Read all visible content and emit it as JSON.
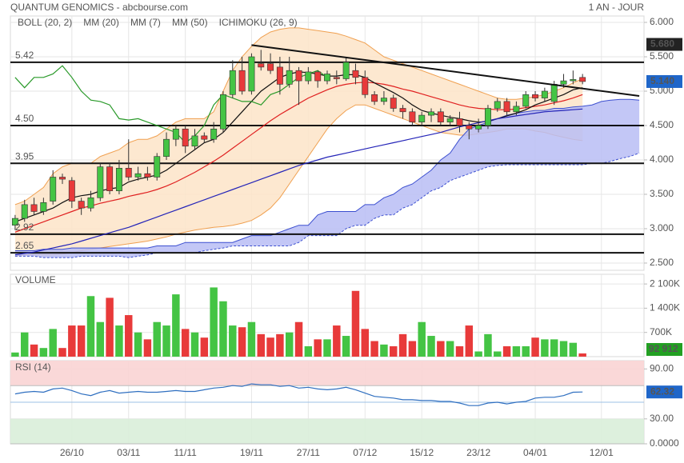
{
  "chart_data": [
    {
      "type": "candlestick",
      "title": "QUANTUM GENOMICS - abcbourse.com",
      "subtitle": "1 AN - JOUR",
      "categories": [
        null,
        null,
        null,
        null,
        null,
        null,
        "26/10",
        null,
        null,
        null,
        null,
        null,
        "03/11",
        null,
        null,
        null,
        null,
        null,
        "11/11",
        null,
        null,
        null,
        null,
        null,
        null,
        "19/11",
        null,
        null,
        null,
        null,
        null,
        "27/11",
        null,
        null,
        null,
        null,
        null,
        "07/12",
        null,
        null,
        null,
        null,
        null,
        "15/12",
        null,
        null,
        null,
        null,
        null,
        "23/12",
        null,
        null,
        null,
        null,
        null,
        "04/01",
        null,
        null,
        null,
        null,
        null,
        null,
        "12/01",
        null,
        null,
        null,
        null
      ],
      "open": [
        3.05,
        3.15,
        3.35,
        3.25,
        3.4,
        3.75,
        3.7,
        3.4,
        3.3,
        3.45,
        3.9,
        3.55,
        3.88,
        3.75,
        3.8,
        3.75,
        4.05,
        4.3,
        4.45,
        4.2,
        4.35,
        4.3,
        4.45,
        4.95,
        5.3,
        5.0,
        5.4,
        5.4,
        5.35,
        5.1,
        5.3,
        5.15,
        5.28,
        5.15,
        5.2,
        5.18,
        5.3,
        5.2,
        4.95,
        4.85,
        4.9,
        4.75,
        4.7,
        4.55,
        4.65,
        4.7,
        4.55,
        4.6,
        4.5,
        4.45,
        4.5,
        4.75,
        4.85,
        4.7,
        4.78,
        4.95,
        4.9,
        4.85,
        5.1,
        5.15,
        5.2,
        null,
        null,
        null,
        null,
        null,
        null
      ],
      "high": [
        3.2,
        3.42,
        3.45,
        3.45,
        3.85,
        3.8,
        3.75,
        3.45,
        3.55,
        3.95,
        3.95,
        4.0,
        4.3,
        3.9,
        3.9,
        4.1,
        4.4,
        4.5,
        4.5,
        4.45,
        4.4,
        4.55,
        5.0,
        5.45,
        5.5,
        5.55,
        5.6,
        5.55,
        5.5,
        5.5,
        5.35,
        5.35,
        5.3,
        5.3,
        5.3,
        5.5,
        5.4,
        5.3,
        5.0,
        5.0,
        4.95,
        4.8,
        4.75,
        4.7,
        4.75,
        4.75,
        4.65,
        4.7,
        4.55,
        4.6,
        4.8,
        4.9,
        4.9,
        4.85,
        5.0,
        5.0,
        5.05,
        5.15,
        5.25,
        5.3,
        5.25,
        null,
        null,
        null,
        null,
        null,
        null
      ],
      "low": [
        2.98,
        3.1,
        3.2,
        3.2,
        3.35,
        3.65,
        3.3,
        3.2,
        3.25,
        3.4,
        3.5,
        3.5,
        3.7,
        3.7,
        3.7,
        3.7,
        4.0,
        4.2,
        4.1,
        4.15,
        4.25,
        4.25,
        4.4,
        4.9,
        4.95,
        4.95,
        5.3,
        5.25,
        4.95,
        5.05,
        4.8,
        5.1,
        5.05,
        5.1,
        5.1,
        5.15,
        5.1,
        4.9,
        4.8,
        4.8,
        4.7,
        4.6,
        4.5,
        4.5,
        4.55,
        4.5,
        4.5,
        4.4,
        4.3,
        4.4,
        4.45,
        4.7,
        4.65,
        4.65,
        4.75,
        4.85,
        4.85,
        4.8,
        5.05,
        5.1,
        5.1,
        null,
        null,
        null,
        null,
        null,
        null
      ],
      "close": [
        3.15,
        3.35,
        3.25,
        3.38,
        3.75,
        3.72,
        3.4,
        3.3,
        3.45,
        3.9,
        3.55,
        3.88,
        3.75,
        3.8,
        3.75,
        4.05,
        4.3,
        4.45,
        4.2,
        4.35,
        4.3,
        4.45,
        4.95,
        5.3,
        5.0,
        5.5,
        5.35,
        5.3,
        5.1,
        5.3,
        5.15,
        5.28,
        5.15,
        5.25,
        5.18,
        5.42,
        5.2,
        4.95,
        4.85,
        4.9,
        4.75,
        4.7,
        4.55,
        4.65,
        4.7,
        4.55,
        4.6,
        4.5,
        4.45,
        4.5,
        4.75,
        4.85,
        4.7,
        4.78,
        4.95,
        4.9,
        5.0,
        5.1,
        5.15,
        5.17,
        5.14,
        null,
        null,
        null,
        null,
        null,
        null
      ],
      "up_color": "#44c444",
      "down_color": "#e83a3a",
      "series": [
        {
          "name": "BOLL (20, 2)",
          "color": "#f0a050",
          "fill": "#fde4c8",
          "upper": [
            3.35,
            3.4,
            3.5,
            3.6,
            3.8,
            3.9,
            3.95,
            3.95,
            3.95,
            4.05,
            4.1,
            4.15,
            4.25,
            4.3,
            4.3,
            4.35,
            4.45,
            4.55,
            4.6,
            4.6,
            4.6,
            4.7,
            5.0,
            5.3,
            5.5,
            5.65,
            5.78,
            5.86,
            5.9,
            5.92,
            5.92,
            5.9,
            5.88,
            5.86,
            5.84,
            5.8,
            5.75,
            5.7,
            5.6,
            5.5,
            5.45,
            5.4,
            5.35,
            5.3,
            5.25,
            5.2,
            5.15,
            5.1,
            5.05,
            5.0,
            4.95,
            4.9,
            4.88,
            4.88,
            4.9,
            4.92,
            4.95,
            5.0,
            5.05,
            5.12,
            5.18,
            null,
            null,
            null,
            null,
            null,
            null
          ],
          "lower": [
            2.6,
            2.62,
            2.62,
            2.62,
            2.62,
            2.63,
            2.65,
            2.68,
            2.7,
            2.72,
            2.74,
            2.76,
            2.78,
            2.8,
            2.82,
            2.85,
            2.88,
            2.92,
            2.95,
            2.98,
            3.0,
            3.02,
            3.03,
            3.05,
            3.08,
            3.12,
            3.2,
            3.3,
            3.45,
            3.65,
            3.85,
            4.05,
            4.25,
            4.45,
            4.6,
            4.72,
            4.8,
            4.8,
            4.75,
            4.7,
            4.65,
            4.6,
            4.55,
            4.5,
            4.45,
            4.4,
            4.38,
            4.36,
            4.36,
            4.38,
            4.4,
            4.42,
            4.45,
            4.45,
            4.45,
            4.42,
            4.4,
            4.36,
            4.33,
            4.3,
            4.28,
            null,
            null,
            null,
            null,
            null,
            null
          ]
        },
        {
          "name": "MM (20)",
          "color": "#e02020",
          "values": [
            2.95,
            3.0,
            3.05,
            3.1,
            3.15,
            3.2,
            3.25,
            3.3,
            3.33,
            3.37,
            3.4,
            3.43,
            3.47,
            3.5,
            3.53,
            3.57,
            3.62,
            3.68,
            3.75,
            3.82,
            3.9,
            3.98,
            4.07,
            4.17,
            4.27,
            4.37,
            4.47,
            4.57,
            4.66,
            4.74,
            4.82,
            4.9,
            4.96,
            5.02,
            5.07,
            5.1,
            5.12,
            5.13,
            5.12,
            5.1,
            5.07,
            5.03,
            5.0,
            4.96,
            4.92,
            4.88,
            4.84,
            4.8,
            4.77,
            4.75,
            4.74,
            4.73,
            4.73,
            4.74,
            4.76,
            4.78,
            4.8,
            4.83,
            4.86,
            4.9,
            4.95,
            null,
            null,
            null,
            null,
            null,
            null
          ]
        },
        {
          "name": "MM (7)",
          "color": "#111111",
          "values": [
            3.1,
            3.15,
            3.2,
            3.25,
            3.3,
            3.38,
            3.45,
            3.48,
            3.5,
            3.55,
            3.58,
            3.6,
            3.68,
            3.72,
            3.75,
            3.78,
            3.85,
            3.95,
            4.05,
            4.15,
            4.25,
            4.3,
            4.4,
            4.55,
            4.7,
            4.85,
            5.0,
            5.1,
            5.2,
            5.25,
            5.28,
            5.27,
            5.25,
            5.22,
            5.22,
            5.24,
            5.24,
            5.2,
            5.12,
            5.05,
            4.98,
            4.9,
            4.8,
            4.72,
            4.68,
            4.65,
            4.62,
            4.6,
            4.57,
            4.55,
            4.56,
            4.6,
            4.64,
            4.68,
            4.73,
            4.8,
            4.85,
            4.9,
            4.95,
            5.02,
            5.05,
            null,
            null,
            null,
            null,
            null,
            null
          ]
        },
        {
          "name": "MM (50)",
          "color": "#2424b8",
          "values": [
            2.62,
            2.64,
            2.66,
            2.69,
            2.72,
            2.75,
            2.78,
            2.82,
            2.86,
            2.9,
            2.94,
            2.98,
            3.02,
            3.07,
            3.12,
            3.17,
            3.22,
            3.27,
            3.32,
            3.37,
            3.42,
            3.47,
            3.52,
            3.57,
            3.62,
            3.67,
            3.72,
            3.77,
            3.82,
            3.87,
            3.92,
            3.96,
            4.0,
            4.04,
            4.07,
            4.1,
            4.13,
            4.16,
            4.19,
            4.22,
            4.25,
            4.28,
            4.31,
            4.34,
            4.37,
            4.4,
            4.44,
            4.48,
            4.51,
            4.54,
            4.57,
            4.6,
            4.62,
            4.64,
            4.66,
            4.68,
            4.7,
            4.71,
            4.72,
            4.73,
            4.74,
            null,
            null,
            null,
            null,
            null,
            null
          ]
        },
        {
          "name": "ICHIMOKU (26, 9)",
          "color": "#3c4fd0",
          "fill": "#b9bdf4",
          "lagging_color": "#2a9a2a",
          "span_a": [
            2.68,
            2.68,
            2.68,
            2.7,
            2.7,
            2.7,
            2.72,
            2.72,
            2.72,
            2.72,
            2.72,
            2.72,
            2.72,
            2.72,
            2.72,
            2.75,
            2.75,
            2.75,
            2.8,
            2.8,
            2.8,
            2.8,
            2.8,
            2.8,
            2.85,
            2.9,
            2.9,
            2.9,
            2.95,
            3.0,
            3.05,
            3.05,
            3.2,
            3.25,
            3.25,
            3.25,
            3.25,
            3.35,
            3.35,
            3.45,
            3.5,
            3.6,
            3.65,
            3.75,
            3.85,
            4.0,
            4.1,
            4.3,
            4.45,
            4.5,
            4.55,
            4.6,
            4.65,
            4.68,
            4.7,
            4.72,
            4.72,
            4.75,
            4.75,
            4.77,
            4.78,
            4.8,
            4.85,
            4.87,
            4.88,
            4.88,
            4.87
          ],
          "span_b": [
            2.6,
            2.6,
            2.6,
            2.58,
            2.58,
            2.58,
            2.58,
            2.6,
            2.6,
            2.6,
            2.6,
            2.6,
            2.58,
            2.6,
            2.62,
            2.65,
            2.65,
            2.65,
            2.65,
            2.65,
            2.68,
            2.7,
            2.72,
            2.75,
            2.75,
            2.75,
            2.75,
            2.75,
            2.75,
            2.75,
            2.8,
            2.9,
            2.9,
            2.9,
            2.9,
            3.0,
            3.05,
            3.05,
            3.15,
            3.2,
            3.2,
            3.3,
            3.35,
            3.45,
            3.55,
            3.6,
            3.7,
            3.75,
            3.8,
            3.85,
            3.9,
            3.92,
            3.93,
            3.93,
            3.93,
            3.93,
            3.93,
            3.93,
            3.93,
            3.93,
            3.93,
            3.95,
            3.95,
            3.98,
            4.02,
            4.05,
            4.1
          ],
          "lagging": [
            5.2,
            5.05,
            5.2,
            5.2,
            5.25,
            5.37,
            5.2,
            5.0,
            4.87,
            4.85,
            4.8,
            4.6,
            4.58,
            4.6,
            4.55,
            4.5,
            4.45,
            4.4,
            4.25,
            4.35,
            4.5,
            4.8,
            4.95,
            4.9,
            4.85,
            4.85,
            4.8,
            4.95,
            5.0,
            5.1,
            5.2,
            5.25,
            5.3,
            5.2,
            null,
            null,
            null,
            null,
            null,
            null,
            null,
            null,
            null,
            null,
            null,
            null,
            null,
            null,
            null,
            null,
            null,
            null,
            null,
            null,
            null,
            null,
            null,
            null,
            null,
            null,
            null,
            null,
            null,
            null,
            null,
            null,
            null
          ]
        }
      ],
      "levels": [
        5.42,
        {
          "value": 4.5,
          "label": "4.50"
        },
        3.95,
        2.92,
        2.65
      ],
      "trendline": {
        "start": [
          25,
          5.67
        ],
        "end": [
          66,
          4.93
        ]
      },
      "markers": [
        {
          "value": 5.68,
          "label": "5.680",
          "color": "#222222"
        },
        {
          "value": 5.14,
          "label": "5.140",
          "color": "#1f66c9"
        }
      ],
      "ylim": [
        2.395,
        6.093
      ],
      "yticks": [
        {
          "value": 6,
          "label": "6.000"
        },
        {
          "value": 5.5,
          "label": "5.500"
        },
        {
          "value": 5,
          "label": "5.000"
        },
        {
          "value": 4.5,
          "label": "4.500"
        },
        {
          "value": 4,
          "label": "4.000"
        },
        {
          "value": 3.5,
          "label": "3.500"
        },
        {
          "value": 3,
          "label": "3.000"
        },
        {
          "value": 2.5,
          "label": "2.500"
        }
      ],
      "grid": true
    },
    {
      "type": "bar",
      "title": "VOLUME",
      "values": [
        120000,
        700000,
        350000,
        250000,
        800000,
        250000,
        900000,
        900000,
        1750000,
        1000000,
        1700000,
        900000,
        1200000,
        700000,
        500000,
        1000000,
        900000,
        1800000,
        800000,
        700000,
        550000,
        2000000,
        1600000,
        900000,
        850000,
        1000000,
        650000,
        550000,
        650000,
        700000,
        1000000,
        300000,
        500000,
        500000,
        900000,
        600000,
        1900000,
        800000,
        450000,
        350000,
        300000,
        650000,
        450000,
        1000000,
        600000,
        450000,
        450000,
        300000,
        900000,
        150000,
        650000,
        150000,
        300000,
        300000,
        300000,
        550000,
        500000,
        500000,
        450000,
        400000,
        92912,
        null,
        null,
        null,
        null,
        null,
        null
      ],
      "last_label": {
        "value": 92912,
        "label": "92 912",
        "color": "#22a022"
      },
      "ylim": [
        0,
        2380000
      ],
      "yticks": [
        {
          "value": 2100000,
          "label": "2 100K"
        },
        {
          "value": 1400000,
          "label": "1 400K"
        },
        {
          "value": 700000,
          "label": "700K"
        }
      ],
      "grid": true
    },
    {
      "type": "line",
      "title": "RSI (14)",
      "color": "#2f6fc0",
      "values": [
        60,
        62,
        63,
        62,
        66,
        67,
        64,
        60,
        58,
        62,
        64,
        61,
        62,
        63,
        62,
        62,
        63,
        64,
        63,
        63,
        65,
        67,
        68,
        70,
        69,
        72,
        71,
        71,
        69,
        70,
        67,
        68,
        66,
        65,
        66,
        68,
        65,
        61,
        57,
        56,
        55,
        53,
        53,
        52,
        52,
        51,
        51,
        49,
        46,
        46,
        49,
        50,
        48,
        50,
        51,
        55,
        56,
        56,
        58,
        62,
        62.32,
        null,
        null,
        null,
        null,
        null,
        null
      ],
      "last_color": "#1f66c9",
      "zones": [
        {
          "range": [
            70,
            100
          ],
          "color": "#f9d4d4"
        },
        {
          "range": [
            0,
            30
          ],
          "color": "#d9eed9"
        }
      ],
      "midline": 50,
      "ylim": [
        0,
        100
      ],
      "yticks": [
        {
          "value": 90,
          "label": "90.00"
        },
        {
          "value": 30,
          "label": "30.00"
        },
        {
          "value": 0,
          "label": "0.0000"
        }
      ],
      "grid": true
    }
  ]
}
